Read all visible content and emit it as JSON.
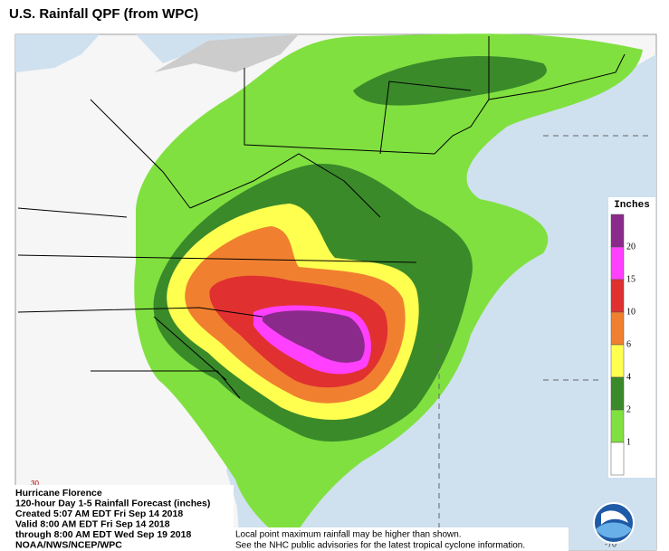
{
  "header": {
    "title": "U.S. Rainfall QPF (from WPC)"
  },
  "legend": {
    "title": "Inches",
    "labels": [
      "20",
      "15",
      "10",
      "6",
      "4",
      "2",
      "1"
    ]
  },
  "caption": {
    "lines": [
      "Hurricane Florence",
      "120-hour Day 1-5 Rainfall Forecast (inches)",
      "Created 5:07 AM EDT Fri Sep 14 2018",
      "Valid 8:00 AM EDT Fri Sep 14 2018",
      "through 8:00 AM EDT Wed Sep 19 2018",
      "NOAA/NWS/NCEP/WPC"
    ]
  },
  "disclaimer": {
    "lines": [
      "Local point maximum rainfall may be higher than shown.",
      "See the NHC public advisories for the latest tropical cyclone information."
    ]
  },
  "grid_labels": {
    "lat": "30",
    "lon": "-70"
  }
}
